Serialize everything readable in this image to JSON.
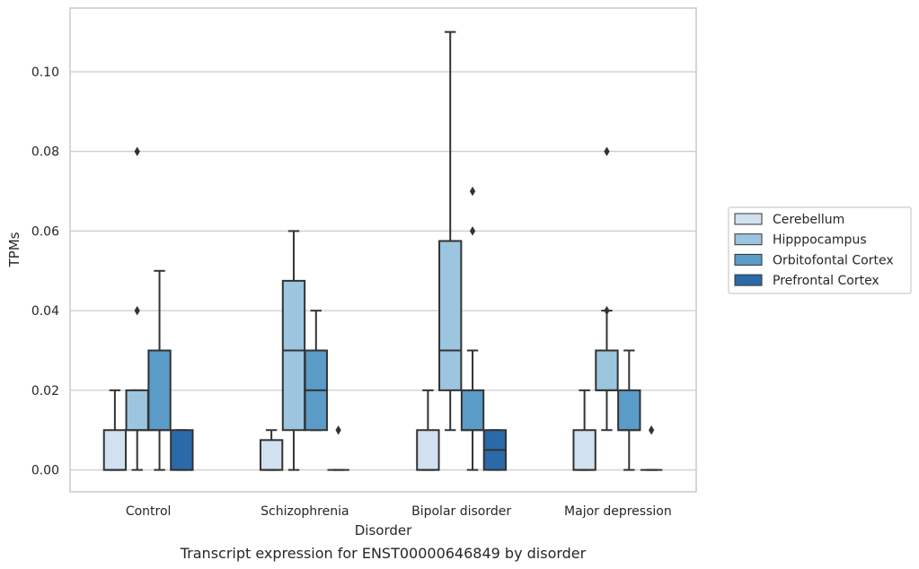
{
  "chart_data": {
    "type": "box",
    "title": "",
    "caption": "Transcript expression for ENST00000646849 by disorder",
    "xlabel": "Disorder",
    "ylabel": "TPMs",
    "ylim": [
      -0.0055,
      0.116
    ],
    "yticks": [
      "0.00",
      "0.02",
      "0.04",
      "0.06",
      "0.08",
      "0.10"
    ],
    "ytick_values": [
      0.0,
      0.02,
      0.04,
      0.06,
      0.08,
      0.1
    ],
    "grid": true,
    "legend_position": "right",
    "categories": [
      "Control",
      "Schizophrenia",
      "Bipolar disorder",
      "Major depression"
    ],
    "series": [
      {
        "name": "Cerebellum",
        "color": "#d1e1f0",
        "boxes": [
          {
            "q1": 0.0,
            "median": 0.0,
            "q3": 0.01,
            "whisker_low": 0.0,
            "whisker_high": 0.02,
            "outliers": []
          },
          {
            "q1": 0.0,
            "median": 0.0,
            "q3": 0.0075,
            "whisker_low": 0.0,
            "whisker_high": 0.01,
            "outliers": []
          },
          {
            "q1": 0.0,
            "median": 0.0,
            "q3": 0.01,
            "whisker_low": 0.0,
            "whisker_high": 0.02,
            "outliers": []
          },
          {
            "q1": 0.0,
            "median": 0.0,
            "q3": 0.01,
            "whisker_low": 0.0,
            "whisker_high": 0.02,
            "outliers": []
          }
        ]
      },
      {
        "name": "Hipppocampus",
        "color": "#9cc5df",
        "boxes": [
          {
            "q1": 0.01,
            "median": 0.01,
            "q3": 0.02,
            "whisker_low": 0.0,
            "whisker_high": 0.02,
            "outliers": [
              0.04,
              0.08
            ]
          },
          {
            "q1": 0.01,
            "median": 0.03,
            "q3": 0.0475,
            "whisker_low": 0.0,
            "whisker_high": 0.06,
            "outliers": []
          },
          {
            "q1": 0.02,
            "median": 0.03,
            "q3": 0.0575,
            "whisker_low": 0.01,
            "whisker_high": 0.11,
            "outliers": []
          },
          {
            "q1": 0.02,
            "median": 0.02,
            "q3": 0.03,
            "whisker_low": 0.01,
            "whisker_high": 0.04,
            "outliers": [
              0.04,
              0.08
            ]
          }
        ]
      },
      {
        "name": "Orbitofontal Cortex",
        "color": "#5a9bc8",
        "boxes": [
          {
            "q1": 0.01,
            "median": 0.01,
            "q3": 0.03,
            "whisker_low": 0.0,
            "whisker_high": 0.05,
            "outliers": []
          },
          {
            "q1": 0.01,
            "median": 0.02,
            "q3": 0.03,
            "whisker_low": 0.01,
            "whisker_high": 0.04,
            "outliers": []
          },
          {
            "q1": 0.01,
            "median": 0.01,
            "q3": 0.02,
            "whisker_low": 0.0,
            "whisker_high": 0.03,
            "outliers": [
              0.06,
              0.07
            ]
          },
          {
            "q1": 0.01,
            "median": 0.01,
            "q3": 0.02,
            "whisker_low": 0.0,
            "whisker_high": 0.03,
            "outliers": []
          }
        ]
      },
      {
        "name": "Prefrontal Cortex",
        "color": "#2b6aa8",
        "boxes": [
          {
            "q1": 0.0,
            "median": 0.0,
            "q3": 0.01,
            "whisker_low": 0.0,
            "whisker_high": 0.01,
            "outliers": []
          },
          {
            "q1": 0.0,
            "median": 0.0,
            "q3": 0.0,
            "whisker_low": 0.0,
            "whisker_high": 0.0,
            "outliers": [
              0.01
            ]
          },
          {
            "q1": 0.0,
            "median": 0.005,
            "q3": 0.01,
            "whisker_low": 0.0,
            "whisker_high": 0.01,
            "outliers": []
          },
          {
            "q1": 0.0,
            "median": 0.0,
            "q3": 0.0,
            "whisker_low": 0.0,
            "whisker_high": 0.0,
            "outliers": [
              0.01
            ]
          }
        ]
      }
    ]
  }
}
